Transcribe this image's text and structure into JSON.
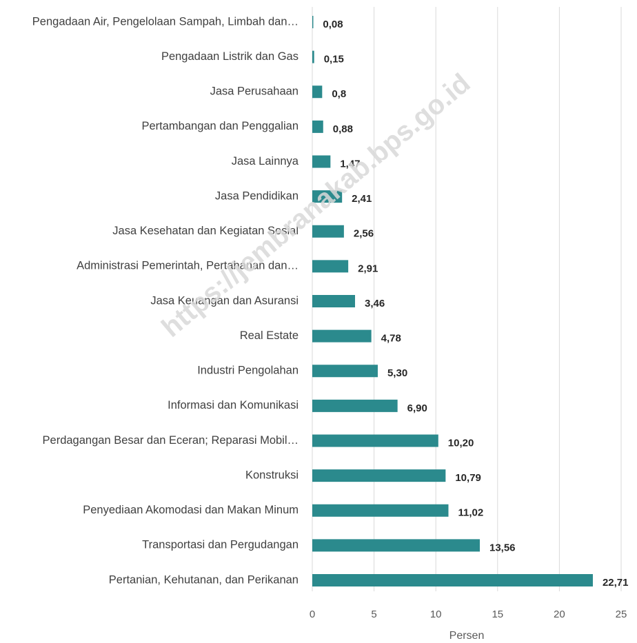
{
  "chart_data": {
    "type": "barh",
    "categories": [
      "Pengadaan Air, Pengelolaan Sampah, Limbah dan…",
      "Pengadaan Listrik dan Gas",
      "Jasa Perusahaan",
      "Pertambangan dan Penggalian",
      "Jasa Lainnya",
      "Jasa Pendidikan",
      "Jasa Kesehatan dan Kegiatan Sosial",
      "Administrasi Pemerintah, Pertahanan dan…",
      "Jasa Keuangan dan Asuransi",
      "Real Estate",
      "Industri Pengolahan",
      "Informasi dan Komunikasi",
      "Perdagangan Besar dan Eceran; Reparasi Mobil…",
      "Konstruksi",
      "Penyediaan Akomodasi dan Makan Minum",
      "Transportasi dan Pergudangan",
      "Pertanian, Kehutanan, dan Perikanan"
    ],
    "values": [
      0.08,
      0.15,
      0.8,
      0.88,
      1.47,
      2.41,
      2.56,
      2.91,
      3.46,
      4.78,
      5.3,
      6.9,
      10.2,
      10.79,
      11.02,
      13.56,
      22.71
    ],
    "value_labels": [
      "0,08",
      "0,15",
      "0,8",
      "0,88",
      "1,47",
      "2,41",
      "2,56",
      "2,91",
      "3,46",
      "4,78",
      "5,30",
      "6,90",
      "10,20",
      "10,79",
      "11,02",
      "13,56",
      "22,71"
    ],
    "color": "#2b8a8d",
    "xlabel": "Persen",
    "xlim": [
      0,
      25
    ],
    "xticks": [
      0,
      5,
      10,
      15,
      20,
      25
    ],
    "grid": true,
    "watermark": "https://jembranakab.bps.go.id"
  }
}
